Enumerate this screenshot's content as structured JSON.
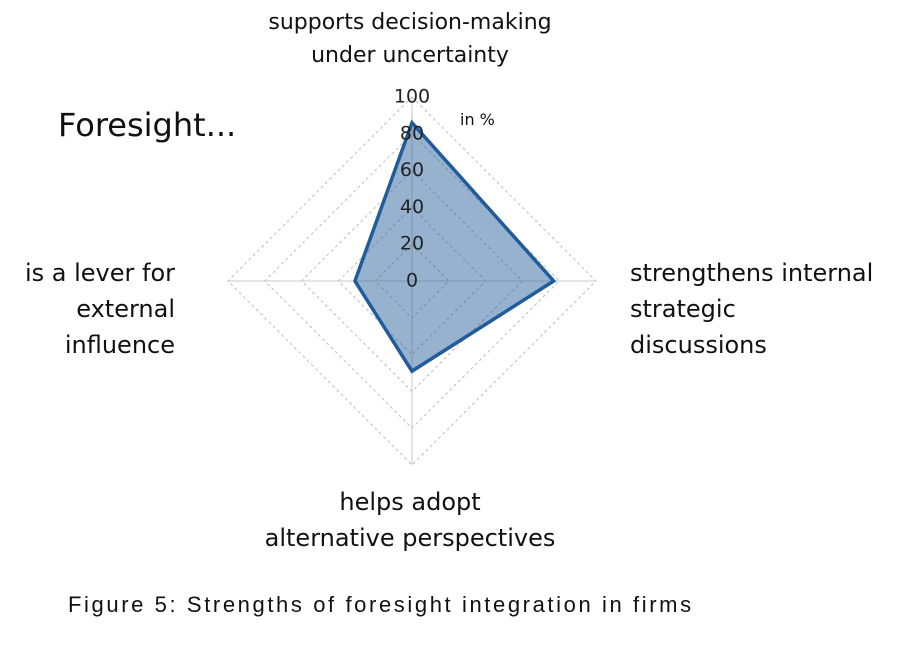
{
  "chart_data": {
    "type": "radar",
    "title": "Foresight...",
    "unit_label": "in %",
    "caption": "Figure 5: Strengths of foresight integration in firms",
    "categories": [
      "supports decision-making\nunder uncertainty",
      "strengthens internal\nstrategic\ndiscussions",
      "helps adopt\nalternative perspectives",
      "is a lever for\nexternal\ninfluence"
    ],
    "series": [
      {
        "color": "#1f5c99",
        "values": [
          86,
          77,
          49,
          31
        ]
      }
    ],
    "ylim": [
      0,
      100
    ],
    "yticks": [
      0,
      20,
      40,
      60,
      80,
      100
    ],
    "grid": true
  }
}
